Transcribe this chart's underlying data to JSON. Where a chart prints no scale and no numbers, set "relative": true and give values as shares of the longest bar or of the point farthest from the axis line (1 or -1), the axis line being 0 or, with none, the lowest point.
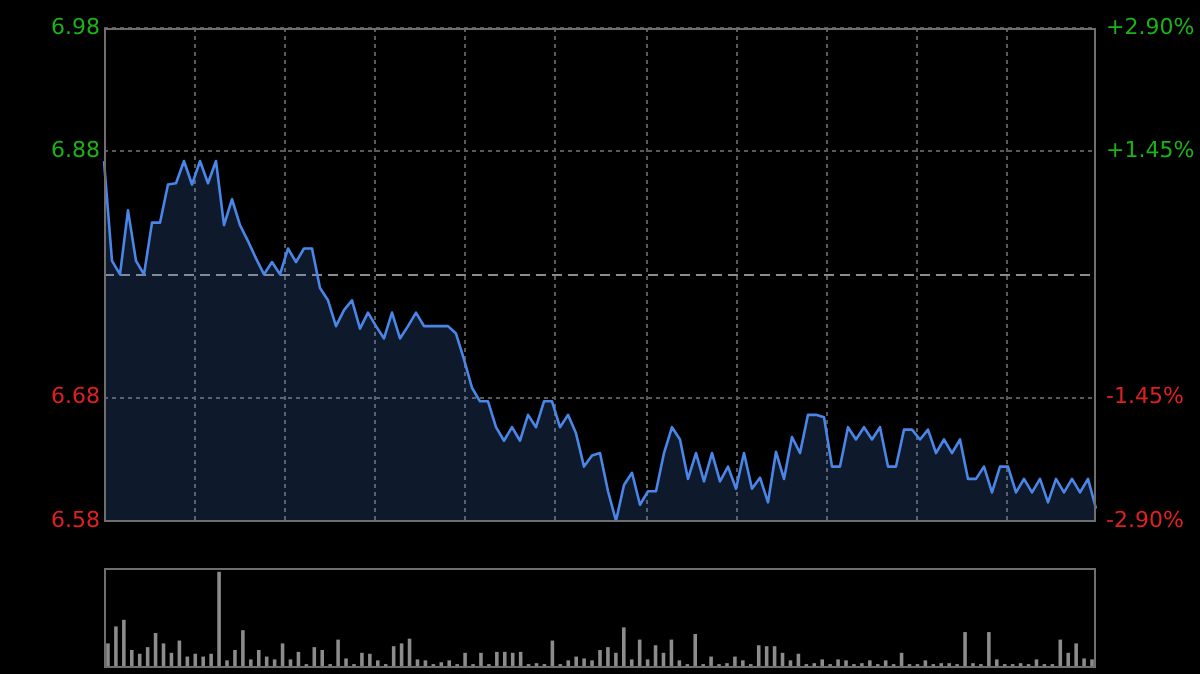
{
  "chart_data": [
    {
      "type": "area",
      "categories": [
        null,
        null,
        null,
        null,
        null,
        null,
        null,
        null,
        null,
        null,
        null,
        null,
        null,
        null,
        null,
        null,
        null,
        null,
        null,
        null,
        null,
        null,
        null,
        null,
        null,
        null,
        null,
        null,
        null,
        null,
        null,
        null,
        null,
        null,
        null,
        null,
        null,
        null,
        null,
        null,
        null,
        null,
        null,
        null,
        null,
        null,
        null,
        null,
        null,
        null,
        null,
        null,
        null,
        null,
        null,
        null,
        null,
        null,
        null,
        null,
        null,
        null,
        null,
        null,
        null,
        null,
        null,
        null,
        null,
        null,
        null,
        null,
        null,
        null,
        null,
        null,
        null,
        null,
        null,
        null,
        null,
        null,
        null,
        null,
        null,
        null,
        null,
        null,
        null,
        null,
        null,
        null,
        null,
        null,
        null,
        null,
        null,
        null,
        null,
        null,
        null,
        null,
        null,
        null,
        null,
        null,
        null,
        null,
        null,
        null,
        null,
        null,
        null,
        null,
        null,
        null,
        null,
        null,
        null,
        null,
        null,
        null,
        null,
        null,
        null
      ],
      "ylim": [
        6.58,
        6.98
      ],
      "yticks": [
        6.58,
        6.68,
        6.88,
        6.98
      ],
      "y2lim": [
        -2.9,
        2.9
      ],
      "y2ticks": [
        {
          "value": -2.9,
          "label": "-2.90%"
        },
        {
          "value": -1.45,
          "label": "-1.45%"
        },
        {
          "value": 1.45,
          "label": "+1.45%"
        },
        {
          "value": 2.9,
          "label": "+2.90%"
        }
      ],
      "grid": true,
      "tick_labels": "y",
      "ref_lines": [
        {
          "axis": "y",
          "value": 6.78,
          "color": "#8c8c8c",
          "line_style": "dashed"
        }
      ],
      "series": [
        {
          "color": "#4a86e8",
          "values": [
            6.872,
            6.791,
            6.78,
            6.832,
            6.791,
            6.78,
            6.822,
            6.822,
            6.853,
            6.854,
            6.872,
            6.853,
            6.872,
            6.854,
            6.872,
            6.82,
            6.841,
            6.82,
            6.807,
            6.793,
            6.78,
            6.79,
            6.78,
            6.801,
            6.79,
            6.801,
            6.801,
            6.769,
            6.759,
            6.738,
            6.751,
            6.759,
            6.736,
            6.749,
            6.738,
            6.728,
            6.749,
            6.728,
            6.738,
            6.749,
            6.738,
            6.738,
            6.738,
            6.738,
            6.732,
            6.711,
            6.688,
            6.677,
            6.677,
            6.656,
            6.645,
            6.656,
            6.645,
            6.666,
            6.656,
            6.677,
            6.677,
            6.656,
            6.666,
            6.651,
            6.624,
            6.633,
            6.635,
            6.604,
            6.58,
            6.609,
            6.619,
            6.593,
            6.604,
            6.604,
            6.635,
            6.656,
            6.646,
            6.614,
            6.635,
            6.612,
            6.635,
            6.612,
            6.624,
            6.606,
            6.635,
            6.606,
            6.615,
            6.595,
            6.636,
            6.614,
            6.648,
            6.635,
            6.666,
            6.666,
            6.664,
            6.624,
            6.624,
            6.656,
            6.646,
            6.656,
            6.646,
            6.656,
            6.624,
            6.624,
            6.654,
            6.654,
            6.646,
            6.654,
            6.635,
            6.646,
            6.635,
            6.646,
            6.614,
            6.614,
            6.624,
            6.603,
            6.624,
            6.624,
            6.603,
            6.614,
            6.603,
            6.614,
            6.595,
            6.614,
            6.603,
            6.614,
            6.603,
            6.614,
            6.59
          ]
        }
      ]
    },
    {
      "type": "bar",
      "relative": true,
      "color": "#8c8c8c",
      "categories": [
        null,
        null,
        null,
        null,
        null,
        null,
        null,
        null,
        null,
        null,
        null,
        null,
        null,
        null,
        null,
        null,
        null,
        null,
        null,
        null,
        null,
        null,
        null,
        null,
        null,
        null,
        null,
        null,
        null,
        null,
        null,
        null,
        null,
        null,
        null,
        null,
        null,
        null,
        null,
        null,
        null,
        null,
        null,
        null,
        null,
        null,
        null,
        null,
        null,
        null,
        null,
        null,
        null,
        null,
        null,
        null,
        null,
        null,
        null,
        null,
        null,
        null,
        null,
        null,
        null,
        null,
        null,
        null,
        null,
        null,
        null,
        null,
        null,
        null,
        null,
        null,
        null,
        null,
        null,
        null,
        null,
        null,
        null,
        null,
        null,
        null,
        null,
        null,
        null,
        null,
        null,
        null,
        null,
        null,
        null,
        null,
        null,
        null,
        null,
        null,
        null,
        null,
        null,
        null,
        null,
        null,
        null,
        null,
        null,
        null,
        null,
        null,
        null,
        null,
        null,
        null,
        null,
        null,
        null,
        null,
        null,
        null,
        null,
        null,
        null
      ],
      "values": [
        0.24,
        0.42,
        0.49,
        0.17,
        0.13,
        0.2,
        0.35,
        0.24,
        0.14,
        0.27,
        0.1,
        0.13,
        0.1,
        0.13,
        1,
        0.06,
        0.17,
        0.38,
        0.07,
        0.17,
        0.1,
        0.07,
        0.24,
        0.07,
        0.15,
        0.02,
        0.2,
        0.17,
        0.02,
        0.28,
        0.08,
        0.02,
        0.14,
        0.13,
        0.06,
        0.02,
        0.21,
        0.24,
        0.29,
        0.07,
        0.06,
        0.02,
        0.04,
        0.06,
        0.02,
        0.14,
        0.02,
        0.14,
        0.02,
        0.15,
        0.15,
        0.14,
        0.15,
        0.02,
        0.03,
        0.02,
        0.27,
        0.02,
        0.06,
        0.1,
        0.08,
        0.06,
        0.17,
        0.2,
        0.14,
        0.41,
        0.07,
        0.28,
        0.07,
        0.22,
        0.14,
        0.28,
        0.06,
        0.02,
        0.34,
        0.02,
        0.1,
        0.02,
        0.03,
        0.1,
        0.06,
        0.02,
        0.22,
        0.21,
        0.21,
        0.14,
        0.06,
        0.13,
        0.02,
        0.03,
        0.07,
        0.02,
        0.07,
        0.06,
        0.02,
        0.03,
        0.06,
        0.02,
        0.06,
        0.02,
        0.14,
        0.02,
        0.02,
        0.06,
        0.02,
        0.03,
        0.03,
        0.02,
        0.36,
        0.03,
        0.02,
        0.36,
        0.07,
        0.02,
        0.02,
        0.03,
        0.02,
        0.07,
        0.02,
        0.02,
        0.28,
        0.14,
        0.24,
        0.08,
        0.07
      ]
    }
  ]
}
